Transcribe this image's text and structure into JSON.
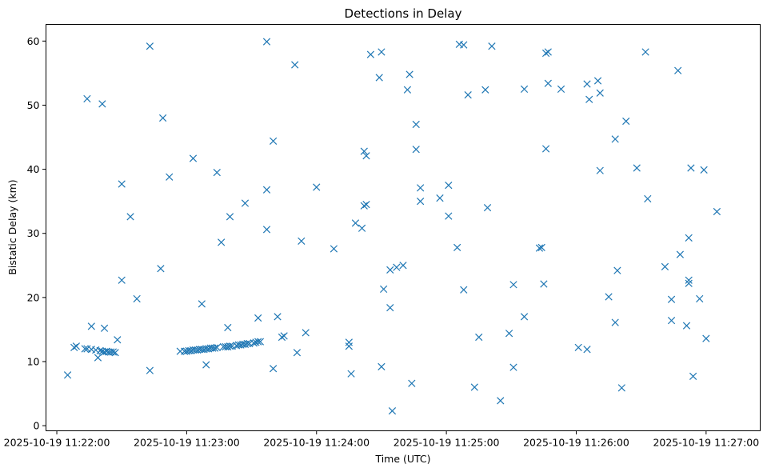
{
  "chart_data": {
    "type": "scatter",
    "title": "Detections in Delay",
    "xlabel": "Time (UTC)",
    "ylabel": "Bistatic Delay (km)",
    "date": "2025-10-19",
    "xlim": [
      "11:21:55",
      "11:27:25"
    ],
    "ylim": [
      -0.8,
      62.6
    ],
    "x_ticks": [
      "2025-10-19 11:22:00",
      "2025-10-19 11:23:00",
      "2025-10-19 11:24:00",
      "2025-10-19 11:25:00",
      "2025-10-19 11:26:00",
      "2025-10-19 11:27:00"
    ],
    "y_ticks": [
      "0",
      "10",
      "20",
      "30",
      "40",
      "50",
      "60"
    ],
    "grid": false,
    "legend": "none",
    "marker": "x",
    "color": "#1f77b4",
    "points": [
      {
        "x": "11:22:05",
        "y": 7.9
      },
      {
        "x": "11:22:08",
        "y": 12.2
      },
      {
        "x": "11:22:09",
        "y": 12.4
      },
      {
        "x": "11:22:13",
        "y": 12.0
      },
      {
        "x": "11:22:14",
        "y": 51.0
      },
      {
        "x": "11:22:14",
        "y": 12.0
      },
      {
        "x": "11:22:16",
        "y": 11.9
      },
      {
        "x": "11:22:16",
        "y": 15.5
      },
      {
        "x": "11:22:18",
        "y": 11.8
      },
      {
        "x": "11:22:19",
        "y": 10.6
      },
      {
        "x": "11:22:20",
        "y": 11.7
      },
      {
        "x": "11:22:21",
        "y": 50.2
      },
      {
        "x": "11:22:21",
        "y": 11.6
      },
      {
        "x": "11:22:22",
        "y": 15.2
      },
      {
        "x": "11:22:22",
        "y": 11.5
      },
      {
        "x": "11:22:23",
        "y": 11.6
      },
      {
        "x": "11:22:24",
        "y": 11.5
      },
      {
        "x": "11:22:25",
        "y": 11.5
      },
      {
        "x": "11:22:26",
        "y": 11.5
      },
      {
        "x": "11:22:27",
        "y": 11.4
      },
      {
        "x": "11:22:28",
        "y": 13.4
      },
      {
        "x": "11:22:30",
        "y": 37.7
      },
      {
        "x": "11:22:30",
        "y": 22.7
      },
      {
        "x": "11:22:34",
        "y": 32.6
      },
      {
        "x": "11:22:37",
        "y": 19.8
      },
      {
        "x": "11:22:43",
        "y": 59.2
      },
      {
        "x": "11:22:43",
        "y": 8.6
      },
      {
        "x": "11:22:48",
        "y": 24.5
      },
      {
        "x": "11:22:49",
        "y": 48.0
      },
      {
        "x": "11:22:52",
        "y": 38.8
      },
      {
        "x": "11:22:57",
        "y": 11.6
      },
      {
        "x": "11:22:59",
        "y": 11.6
      },
      {
        "x": "11:23:00",
        "y": 11.6
      },
      {
        "x": "11:23:01",
        "y": 11.7
      },
      {
        "x": "11:23:02",
        "y": 11.7
      },
      {
        "x": "11:23:03",
        "y": 41.7
      },
      {
        "x": "11:23:03",
        "y": 11.8
      },
      {
        "x": "11:23:04",
        "y": 11.8
      },
      {
        "x": "11:23:05",
        "y": 11.8
      },
      {
        "x": "11:23:06",
        "y": 11.9
      },
      {
        "x": "11:23:07",
        "y": 11.9
      },
      {
        "x": "11:23:07",
        "y": 19.0
      },
      {
        "x": "11:23:08",
        "y": 11.9
      },
      {
        "x": "11:23:09",
        "y": 9.5
      },
      {
        "x": "11:23:09",
        "y": 12.0
      },
      {
        "x": "11:23:10",
        "y": 12.0
      },
      {
        "x": "11:23:11",
        "y": 12.1
      },
      {
        "x": "11:23:12",
        "y": 12.1
      },
      {
        "x": "11:23:13",
        "y": 12.1
      },
      {
        "x": "11:23:14",
        "y": 39.5
      },
      {
        "x": "11:23:14",
        "y": 12.2
      },
      {
        "x": "11:23:16",
        "y": 28.6
      },
      {
        "x": "11:23:17",
        "y": 12.3
      },
      {
        "x": "11:23:18",
        "y": 12.3
      },
      {
        "x": "11:23:19",
        "y": 15.3
      },
      {
        "x": "11:23:19",
        "y": 12.3
      },
      {
        "x": "11:23:20",
        "y": 32.6
      },
      {
        "x": "11:23:20",
        "y": 12.4
      },
      {
        "x": "11:23:21",
        "y": 12.4
      },
      {
        "x": "11:23:23",
        "y": 12.5
      },
      {
        "x": "11:23:24",
        "y": 12.6
      },
      {
        "x": "11:23:25",
        "y": 12.6
      },
      {
        "x": "11:23:26",
        "y": 12.7
      },
      {
        "x": "11:23:27",
        "y": 34.7
      },
      {
        "x": "11:23:27",
        "y": 12.7
      },
      {
        "x": "11:23:28",
        "y": 12.8
      },
      {
        "x": "11:23:29",
        "y": 12.8
      },
      {
        "x": "11:23:31",
        "y": 12.9
      },
      {
        "x": "11:23:32",
        "y": 13.0
      },
      {
        "x": "11:23:33",
        "y": 16.8
      },
      {
        "x": "11:23:33",
        "y": 13.1
      },
      {
        "x": "11:23:34",
        "y": 13.1
      },
      {
        "x": "11:23:37",
        "y": 59.9
      },
      {
        "x": "11:23:37",
        "y": 36.8
      },
      {
        "x": "11:23:37",
        "y": 30.6
      },
      {
        "x": "11:23:40",
        "y": 44.4
      },
      {
        "x": "11:23:40",
        "y": 8.9
      },
      {
        "x": "11:23:42",
        "y": 17.0
      },
      {
        "x": "11:23:44",
        "y": 13.8
      },
      {
        "x": "11:23:45",
        "y": 14.0
      },
      {
        "x": "11:23:50",
        "y": 56.3
      },
      {
        "x": "11:23:51",
        "y": 11.4
      },
      {
        "x": "11:23:53",
        "y": 28.8
      },
      {
        "x": "11:23:55",
        "y": 14.5
      },
      {
        "x": "11:24:00",
        "y": 37.2
      },
      {
        "x": "11:24:08",
        "y": 27.6
      },
      {
        "x": "11:24:15",
        "y": 13.0
      },
      {
        "x": "11:24:15",
        "y": 12.4
      },
      {
        "x": "11:24:16",
        "y": 8.1
      },
      {
        "x": "11:24:18",
        "y": 31.6
      },
      {
        "x": "11:24:21",
        "y": 30.8
      },
      {
        "x": "11:24:22",
        "y": 34.3
      },
      {
        "x": "11:24:22",
        "y": 42.8
      },
      {
        "x": "11:24:23",
        "y": 42.1
      },
      {
        "x": "11:24:23",
        "y": 34.5
      },
      {
        "x": "11:24:25",
        "y": 57.9
      },
      {
        "x": "11:24:29",
        "y": 54.3
      },
      {
        "x": "11:24:30",
        "y": 58.3
      },
      {
        "x": "11:24:30",
        "y": 9.2
      },
      {
        "x": "11:24:31",
        "y": 21.3
      },
      {
        "x": "11:24:34",
        "y": 18.4
      },
      {
        "x": "11:24:34",
        "y": 24.3
      },
      {
        "x": "11:24:35",
        "y": 2.3
      },
      {
        "x": "11:24:37",
        "y": 24.7
      },
      {
        "x": "11:24:40",
        "y": 25.0
      },
      {
        "x": "11:24:42",
        "y": 52.4
      },
      {
        "x": "11:24:43",
        "y": 54.8
      },
      {
        "x": "11:24:44",
        "y": 6.6
      },
      {
        "x": "11:24:46",
        "y": 47.0
      },
      {
        "x": "11:24:46",
        "y": 43.1
      },
      {
        "x": "11:24:48",
        "y": 37.1
      },
      {
        "x": "11:24:48",
        "y": 35.0
      },
      {
        "x": "11:24:57",
        "y": 35.5
      },
      {
        "x": "11:25:01",
        "y": 37.5
      },
      {
        "x": "11:25:01",
        "y": 32.7
      },
      {
        "x": "11:25:05",
        "y": 27.8
      },
      {
        "x": "11:25:06",
        "y": 59.5
      },
      {
        "x": "11:25:08",
        "y": 59.4
      },
      {
        "x": "11:25:08",
        "y": 21.2
      },
      {
        "x": "11:25:10",
        "y": 51.6
      },
      {
        "x": "11:25:13",
        "y": 6.0
      },
      {
        "x": "11:25:15",
        "y": 13.8
      },
      {
        "x": "11:25:18",
        "y": 52.4
      },
      {
        "x": "11:25:19",
        "y": 34.0
      },
      {
        "x": "11:25:21",
        "y": 59.2
      },
      {
        "x": "11:25:25",
        "y": 3.9
      },
      {
        "x": "11:25:29",
        "y": 14.4
      },
      {
        "x": "11:25:31",
        "y": 22.0
      },
      {
        "x": "11:25:31",
        "y": 9.1
      },
      {
        "x": "11:25:36",
        "y": 17.0
      },
      {
        "x": "11:25:36",
        "y": 52.5
      },
      {
        "x": "11:25:43",
        "y": 27.7
      },
      {
        "x": "11:25:44",
        "y": 27.8
      },
      {
        "x": "11:25:45",
        "y": 22.1
      },
      {
        "x": "11:25:46",
        "y": 43.2
      },
      {
        "x": "11:25:46",
        "y": 58.1
      },
      {
        "x": "11:25:47",
        "y": 58.3
      },
      {
        "x": "11:25:47",
        "y": 53.4
      },
      {
        "x": "11:25:53",
        "y": 52.5
      },
      {
        "x": "11:26:01",
        "y": 12.2
      },
      {
        "x": "11:26:05",
        "y": 53.3
      },
      {
        "x": "11:26:05",
        "y": 11.9
      },
      {
        "x": "11:26:06",
        "y": 50.9
      },
      {
        "x": "11:26:10",
        "y": 53.8
      },
      {
        "x": "11:26:11",
        "y": 39.8
      },
      {
        "x": "11:26:11",
        "y": 51.9
      },
      {
        "x": "11:26:15",
        "y": 20.1
      },
      {
        "x": "11:26:18",
        "y": 44.7
      },
      {
        "x": "11:26:18",
        "y": 16.1
      },
      {
        "x": "11:26:19",
        "y": 24.2
      },
      {
        "x": "11:26:21",
        "y": 5.9
      },
      {
        "x": "11:26:23",
        "y": 47.5
      },
      {
        "x": "11:26:28",
        "y": 40.2
      },
      {
        "x": "11:26:32",
        "y": 58.3
      },
      {
        "x": "11:26:33",
        "y": 35.4
      },
      {
        "x": "11:26:41",
        "y": 24.8
      },
      {
        "x": "11:26:44",
        "y": 16.4
      },
      {
        "x": "11:26:44",
        "y": 19.7
      },
      {
        "x": "11:26:47",
        "y": 55.4
      },
      {
        "x": "11:26:48",
        "y": 26.7
      },
      {
        "x": "11:26:51",
        "y": 15.6
      },
      {
        "x": "11:26:52",
        "y": 22.2
      },
      {
        "x": "11:26:52",
        "y": 22.7
      },
      {
        "x": "11:26:52",
        "y": 29.3
      },
      {
        "x": "11:26:53",
        "y": 40.2
      },
      {
        "x": "11:26:54",
        "y": 7.7
      },
      {
        "x": "11:26:57",
        "y": 19.8
      },
      {
        "x": "11:26:59",
        "y": 39.9
      },
      {
        "x": "11:27:00",
        "y": 13.6
      },
      {
        "x": "11:27:05",
        "y": 33.4
      }
    ]
  }
}
